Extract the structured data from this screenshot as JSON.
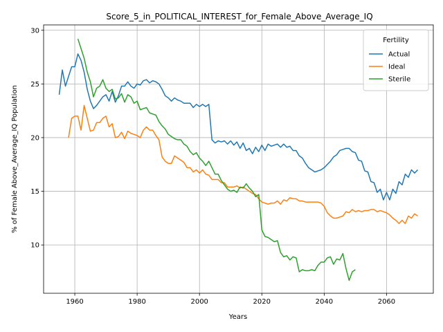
{
  "chart_data": {
    "type": "line",
    "title": "Score_5_in_POLITICAL_INTEREST_for_Female_Above_Average_IQ",
    "xlabel": "Years",
    "ylabel": "% of Female Above_Average_IQ Population",
    "xlim": [
      1950,
      2075
    ],
    "ylim": [
      5.5,
      30.5
    ],
    "xticks": [
      1960,
      1980,
      2000,
      2020,
      2040,
      2060
    ],
    "yticks": [
      10,
      15,
      20,
      25,
      30
    ],
    "grid": true,
    "legend": {
      "title": "Fertility",
      "placement": "top-right"
    },
    "series": [
      {
        "name": "Actual",
        "color": "#1f77b4",
        "points": [
          [
            1955,
            24.0
          ],
          [
            1956,
            26.3
          ],
          [
            1957,
            24.8
          ],
          [
            1958,
            25.7
          ],
          [
            1959,
            26.6
          ],
          [
            1960,
            26.6
          ],
          [
            1961,
            27.8
          ],
          [
            1962,
            27.2
          ],
          [
            1963,
            26.1
          ],
          [
            1964,
            24.5
          ],
          [
            1965,
            23.4
          ],
          [
            1966,
            22.7
          ],
          [
            1967,
            23.0
          ],
          [
            1968,
            23.4
          ],
          [
            1969,
            23.8
          ],
          [
            1970,
            24.0
          ],
          [
            1971,
            23.4
          ],
          [
            1972,
            24.3
          ],
          [
            1973,
            23.3
          ],
          [
            1974,
            23.9
          ],
          [
            1975,
            24.8
          ],
          [
            1976,
            24.8
          ],
          [
            1977,
            25.2
          ],
          [
            1978,
            24.8
          ],
          [
            1979,
            24.6
          ],
          [
            1980,
            25.0
          ],
          [
            1981,
            24.9
          ],
          [
            1982,
            25.3
          ],
          [
            1983,
            25.4
          ],
          [
            1984,
            25.1
          ],
          [
            1985,
            25.3
          ],
          [
            1986,
            25.2
          ],
          [
            1987,
            25.0
          ],
          [
            1988,
            24.5
          ],
          [
            1989,
            23.9
          ],
          [
            1990,
            23.7
          ],
          [
            1991,
            23.4
          ],
          [
            1992,
            23.7
          ],
          [
            1993,
            23.5
          ],
          [
            1994,
            23.4
          ],
          [
            1995,
            23.2
          ],
          [
            1996,
            23.2
          ],
          [
            1997,
            23.2
          ],
          [
            1998,
            22.8
          ],
          [
            1999,
            23.1
          ],
          [
            2000,
            22.9
          ],
          [
            2001,
            23.1
          ],
          [
            2002,
            22.9
          ],
          [
            2003,
            23.1
          ],
          [
            2004,
            19.8
          ],
          [
            2005,
            19.5
          ],
          [
            2006,
            19.7
          ],
          [
            2007,
            19.6
          ],
          [
            2008,
            19.7
          ],
          [
            2009,
            19.4
          ],
          [
            2010,
            19.7
          ],
          [
            2011,
            19.3
          ],
          [
            2012,
            19.6
          ],
          [
            2013,
            19.0
          ],
          [
            2014,
            19.5
          ],
          [
            2015,
            18.8
          ],
          [
            2016,
            19.0
          ],
          [
            2017,
            18.5
          ],
          [
            2018,
            19.1
          ],
          [
            2019,
            18.7
          ],
          [
            2020,
            19.3
          ],
          [
            2021,
            18.8
          ],
          [
            2022,
            19.4
          ],
          [
            2023,
            19.2
          ],
          [
            2024,
            19.3
          ],
          [
            2025,
            19.4
          ],
          [
            2026,
            19.1
          ],
          [
            2027,
            19.4
          ],
          [
            2028,
            19.1
          ],
          [
            2029,
            19.2
          ],
          [
            2030,
            18.8
          ],
          [
            2031,
            18.8
          ],
          [
            2032,
            18.3
          ],
          [
            2033,
            18.1
          ],
          [
            2034,
            17.6
          ],
          [
            2035,
            17.2
          ],
          [
            2036,
            17.0
          ],
          [
            2037,
            16.8
          ],
          [
            2038,
            16.9
          ],
          [
            2039,
            17.0
          ],
          [
            2040,
            17.2
          ],
          [
            2041,
            17.5
          ],
          [
            2042,
            17.8
          ],
          [
            2043,
            18.2
          ],
          [
            2044,
            18.4
          ],
          [
            2045,
            18.8
          ],
          [
            2046,
            18.9
          ],
          [
            2047,
            19.0
          ],
          [
            2048,
            19.0
          ],
          [
            2049,
            18.7
          ],
          [
            2050,
            18.6
          ],
          [
            2051,
            17.9
          ],
          [
            2052,
            17.8
          ],
          [
            2053,
            16.9
          ],
          [
            2054,
            16.8
          ],
          [
            2055,
            15.9
          ],
          [
            2056,
            15.8
          ],
          [
            2057,
            14.9
          ],
          [
            2058,
            15.2
          ],
          [
            2059,
            14.2
          ],
          [
            2060,
            14.9
          ],
          [
            2061,
            14.2
          ],
          [
            2062,
            15.2
          ],
          [
            2063,
            14.8
          ],
          [
            2064,
            15.9
          ],
          [
            2065,
            15.6
          ],
          [
            2066,
            16.6
          ],
          [
            2067,
            16.3
          ],
          [
            2068,
            17.0
          ],
          [
            2069,
            16.7
          ],
          [
            2070,
            17.0
          ]
        ]
      },
      {
        "name": "Ideal",
        "color": "#ff7f0e",
        "points": [
          [
            1958,
            20.0
          ],
          [
            1959,
            21.8
          ],
          [
            1960,
            22.0
          ],
          [
            1961,
            22.0
          ],
          [
            1962,
            20.7
          ],
          [
            1963,
            23.0
          ],
          [
            1964,
            21.8
          ],
          [
            1965,
            20.6
          ],
          [
            1966,
            20.7
          ],
          [
            1967,
            21.4
          ],
          [
            1968,
            21.4
          ],
          [
            1969,
            21.8
          ],
          [
            1970,
            22.0
          ],
          [
            1971,
            21.0
          ],
          [
            1972,
            21.3
          ],
          [
            1973,
            20.0
          ],
          [
            1974,
            20.1
          ],
          [
            1975,
            20.5
          ],
          [
            1976,
            19.9
          ],
          [
            1977,
            20.6
          ],
          [
            1978,
            20.4
          ],
          [
            1979,
            20.3
          ],
          [
            1980,
            20.2
          ],
          [
            1981,
            20.0
          ],
          [
            1982,
            20.7
          ],
          [
            1983,
            21.0
          ],
          [
            1984,
            20.7
          ],
          [
            1985,
            20.7
          ],
          [
            1986,
            20.2
          ],
          [
            1987,
            19.8
          ],
          [
            1988,
            18.2
          ],
          [
            1989,
            17.8
          ],
          [
            1990,
            17.6
          ],
          [
            1991,
            17.6
          ],
          [
            1992,
            18.3
          ],
          [
            1993,
            18.1
          ],
          [
            1994,
            17.9
          ],
          [
            1995,
            17.7
          ],
          [
            1996,
            17.2
          ],
          [
            1997,
            17.2
          ],
          [
            1998,
            16.8
          ],
          [
            1999,
            17.0
          ],
          [
            2000,
            16.7
          ],
          [
            2001,
            17.0
          ],
          [
            2002,
            16.6
          ],
          [
            2003,
            16.5
          ],
          [
            2004,
            16.1
          ],
          [
            2005,
            16.1
          ],
          [
            2006,
            16.1
          ],
          [
            2007,
            15.8
          ],
          [
            2008,
            15.8
          ],
          [
            2009,
            15.4
          ],
          [
            2010,
            15.4
          ],
          [
            2011,
            15.4
          ],
          [
            2012,
            15.5
          ],
          [
            2013,
            15.3
          ],
          [
            2014,
            15.4
          ],
          [
            2015,
            15.2
          ],
          [
            2016,
            15.0
          ],
          [
            2017,
            14.8
          ],
          [
            2018,
            14.7
          ],
          [
            2019,
            14.3
          ],
          [
            2020,
            14.0
          ],
          [
            2021,
            13.9
          ],
          [
            2022,
            13.8
          ],
          [
            2023,
            13.9
          ],
          [
            2024,
            13.9
          ],
          [
            2025,
            14.1
          ],
          [
            2026,
            13.8
          ],
          [
            2027,
            14.2
          ],
          [
            2028,
            14.1
          ],
          [
            2029,
            14.4
          ],
          [
            2030,
            14.3
          ],
          [
            2031,
            14.3
          ],
          [
            2032,
            14.1
          ],
          [
            2033,
            14.1
          ],
          [
            2034,
            14.0
          ],
          [
            2035,
            14.0
          ],
          [
            2036,
            14.0
          ],
          [
            2037,
            14.0
          ],
          [
            2038,
            14.0
          ],
          [
            2039,
            13.9
          ],
          [
            2040,
            13.6
          ],
          [
            2041,
            13.0
          ],
          [
            2042,
            12.7
          ],
          [
            2043,
            12.5
          ],
          [
            2044,
            12.5
          ],
          [
            2045,
            12.6
          ],
          [
            2046,
            12.7
          ],
          [
            2047,
            13.1
          ],
          [
            2048,
            13.0
          ],
          [
            2049,
            13.3
          ],
          [
            2050,
            13.1
          ],
          [
            2051,
            13.2
          ],
          [
            2052,
            13.1
          ],
          [
            2053,
            13.2
          ],
          [
            2054,
            13.2
          ],
          [
            2055,
            13.3
          ],
          [
            2056,
            13.3
          ],
          [
            2057,
            13.1
          ],
          [
            2058,
            13.2
          ],
          [
            2059,
            13.1
          ],
          [
            2060,
            13.0
          ],
          [
            2061,
            12.8
          ],
          [
            2062,
            12.5
          ],
          [
            2063,
            12.3
          ],
          [
            2064,
            12.0
          ],
          [
            2065,
            12.3
          ],
          [
            2066,
            12.0
          ],
          [
            2067,
            12.7
          ],
          [
            2068,
            12.5
          ],
          [
            2069,
            12.9
          ],
          [
            2070,
            12.7
          ]
        ]
      },
      {
        "name": "Sterile",
        "color": "#2ca02c",
        "points": [
          [
            1961,
            29.2
          ],
          [
            1962,
            28.3
          ],
          [
            1963,
            27.4
          ],
          [
            1964,
            26.1
          ],
          [
            1965,
            25.2
          ],
          [
            1966,
            23.8
          ],
          [
            1967,
            24.6
          ],
          [
            1968,
            24.8
          ],
          [
            1969,
            25.4
          ],
          [
            1970,
            24.6
          ],
          [
            1971,
            24.3
          ],
          [
            1972,
            24.5
          ],
          [
            1973,
            23.6
          ],
          [
            1974,
            23.7
          ],
          [
            1975,
            24.1
          ],
          [
            1976,
            23.3
          ],
          [
            1977,
            24.0
          ],
          [
            1978,
            23.8
          ],
          [
            1979,
            23.2
          ],
          [
            1980,
            23.4
          ],
          [
            1981,
            22.6
          ],
          [
            1982,
            22.7
          ],
          [
            1983,
            22.8
          ],
          [
            1984,
            22.3
          ],
          [
            1985,
            22.2
          ],
          [
            1986,
            22.1
          ],
          [
            1987,
            21.5
          ],
          [
            1988,
            21.1
          ],
          [
            1989,
            20.8
          ],
          [
            1990,
            20.3
          ],
          [
            1991,
            20.1
          ],
          [
            1992,
            19.9
          ],
          [
            1993,
            19.8
          ],
          [
            1994,
            19.8
          ],
          [
            1995,
            19.4
          ],
          [
            1996,
            19.2
          ],
          [
            1997,
            18.7
          ],
          [
            1998,
            18.4
          ],
          [
            1999,
            18.6
          ],
          [
            2000,
            18.1
          ],
          [
            2001,
            17.8
          ],
          [
            2002,
            17.4
          ],
          [
            2003,
            17.8
          ],
          [
            2004,
            17.2
          ],
          [
            2005,
            16.6
          ],
          [
            2006,
            16.6
          ],
          [
            2007,
            16.0
          ],
          [
            2008,
            15.6
          ],
          [
            2009,
            15.2
          ],
          [
            2010,
            15.0
          ],
          [
            2011,
            15.1
          ],
          [
            2012,
            14.9
          ],
          [
            2013,
            15.4
          ],
          [
            2014,
            15.3
          ],
          [
            2015,
            15.7
          ],
          [
            2016,
            15.3
          ],
          [
            2017,
            15.0
          ],
          [
            2018,
            14.5
          ],
          [
            2019,
            14.7
          ],
          [
            2020,
            11.4
          ],
          [
            2021,
            10.8
          ],
          [
            2022,
            10.7
          ],
          [
            2023,
            10.5
          ],
          [
            2024,
            10.3
          ],
          [
            2025,
            10.4
          ],
          [
            2026,
            9.3
          ],
          [
            2027,
            8.9
          ],
          [
            2028,
            9.0
          ],
          [
            2029,
            8.6
          ],
          [
            2030,
            8.9
          ],
          [
            2031,
            8.8
          ],
          [
            2032,
            7.5
          ],
          [
            2033,
            7.7
          ],
          [
            2034,
            7.6
          ],
          [
            2035,
            7.6
          ],
          [
            2036,
            7.7
          ],
          [
            2037,
            7.6
          ],
          [
            2038,
            8.1
          ],
          [
            2039,
            8.4
          ],
          [
            2040,
            8.4
          ],
          [
            2041,
            8.8
          ],
          [
            2042,
            8.9
          ],
          [
            2043,
            8.2
          ],
          [
            2044,
            8.7
          ],
          [
            2045,
            8.6
          ],
          [
            2046,
            9.2
          ],
          [
            2047,
            7.8
          ],
          [
            2048,
            6.7
          ],
          [
            2049,
            7.5
          ],
          [
            2050,
            7.7
          ]
        ]
      }
    ]
  }
}
